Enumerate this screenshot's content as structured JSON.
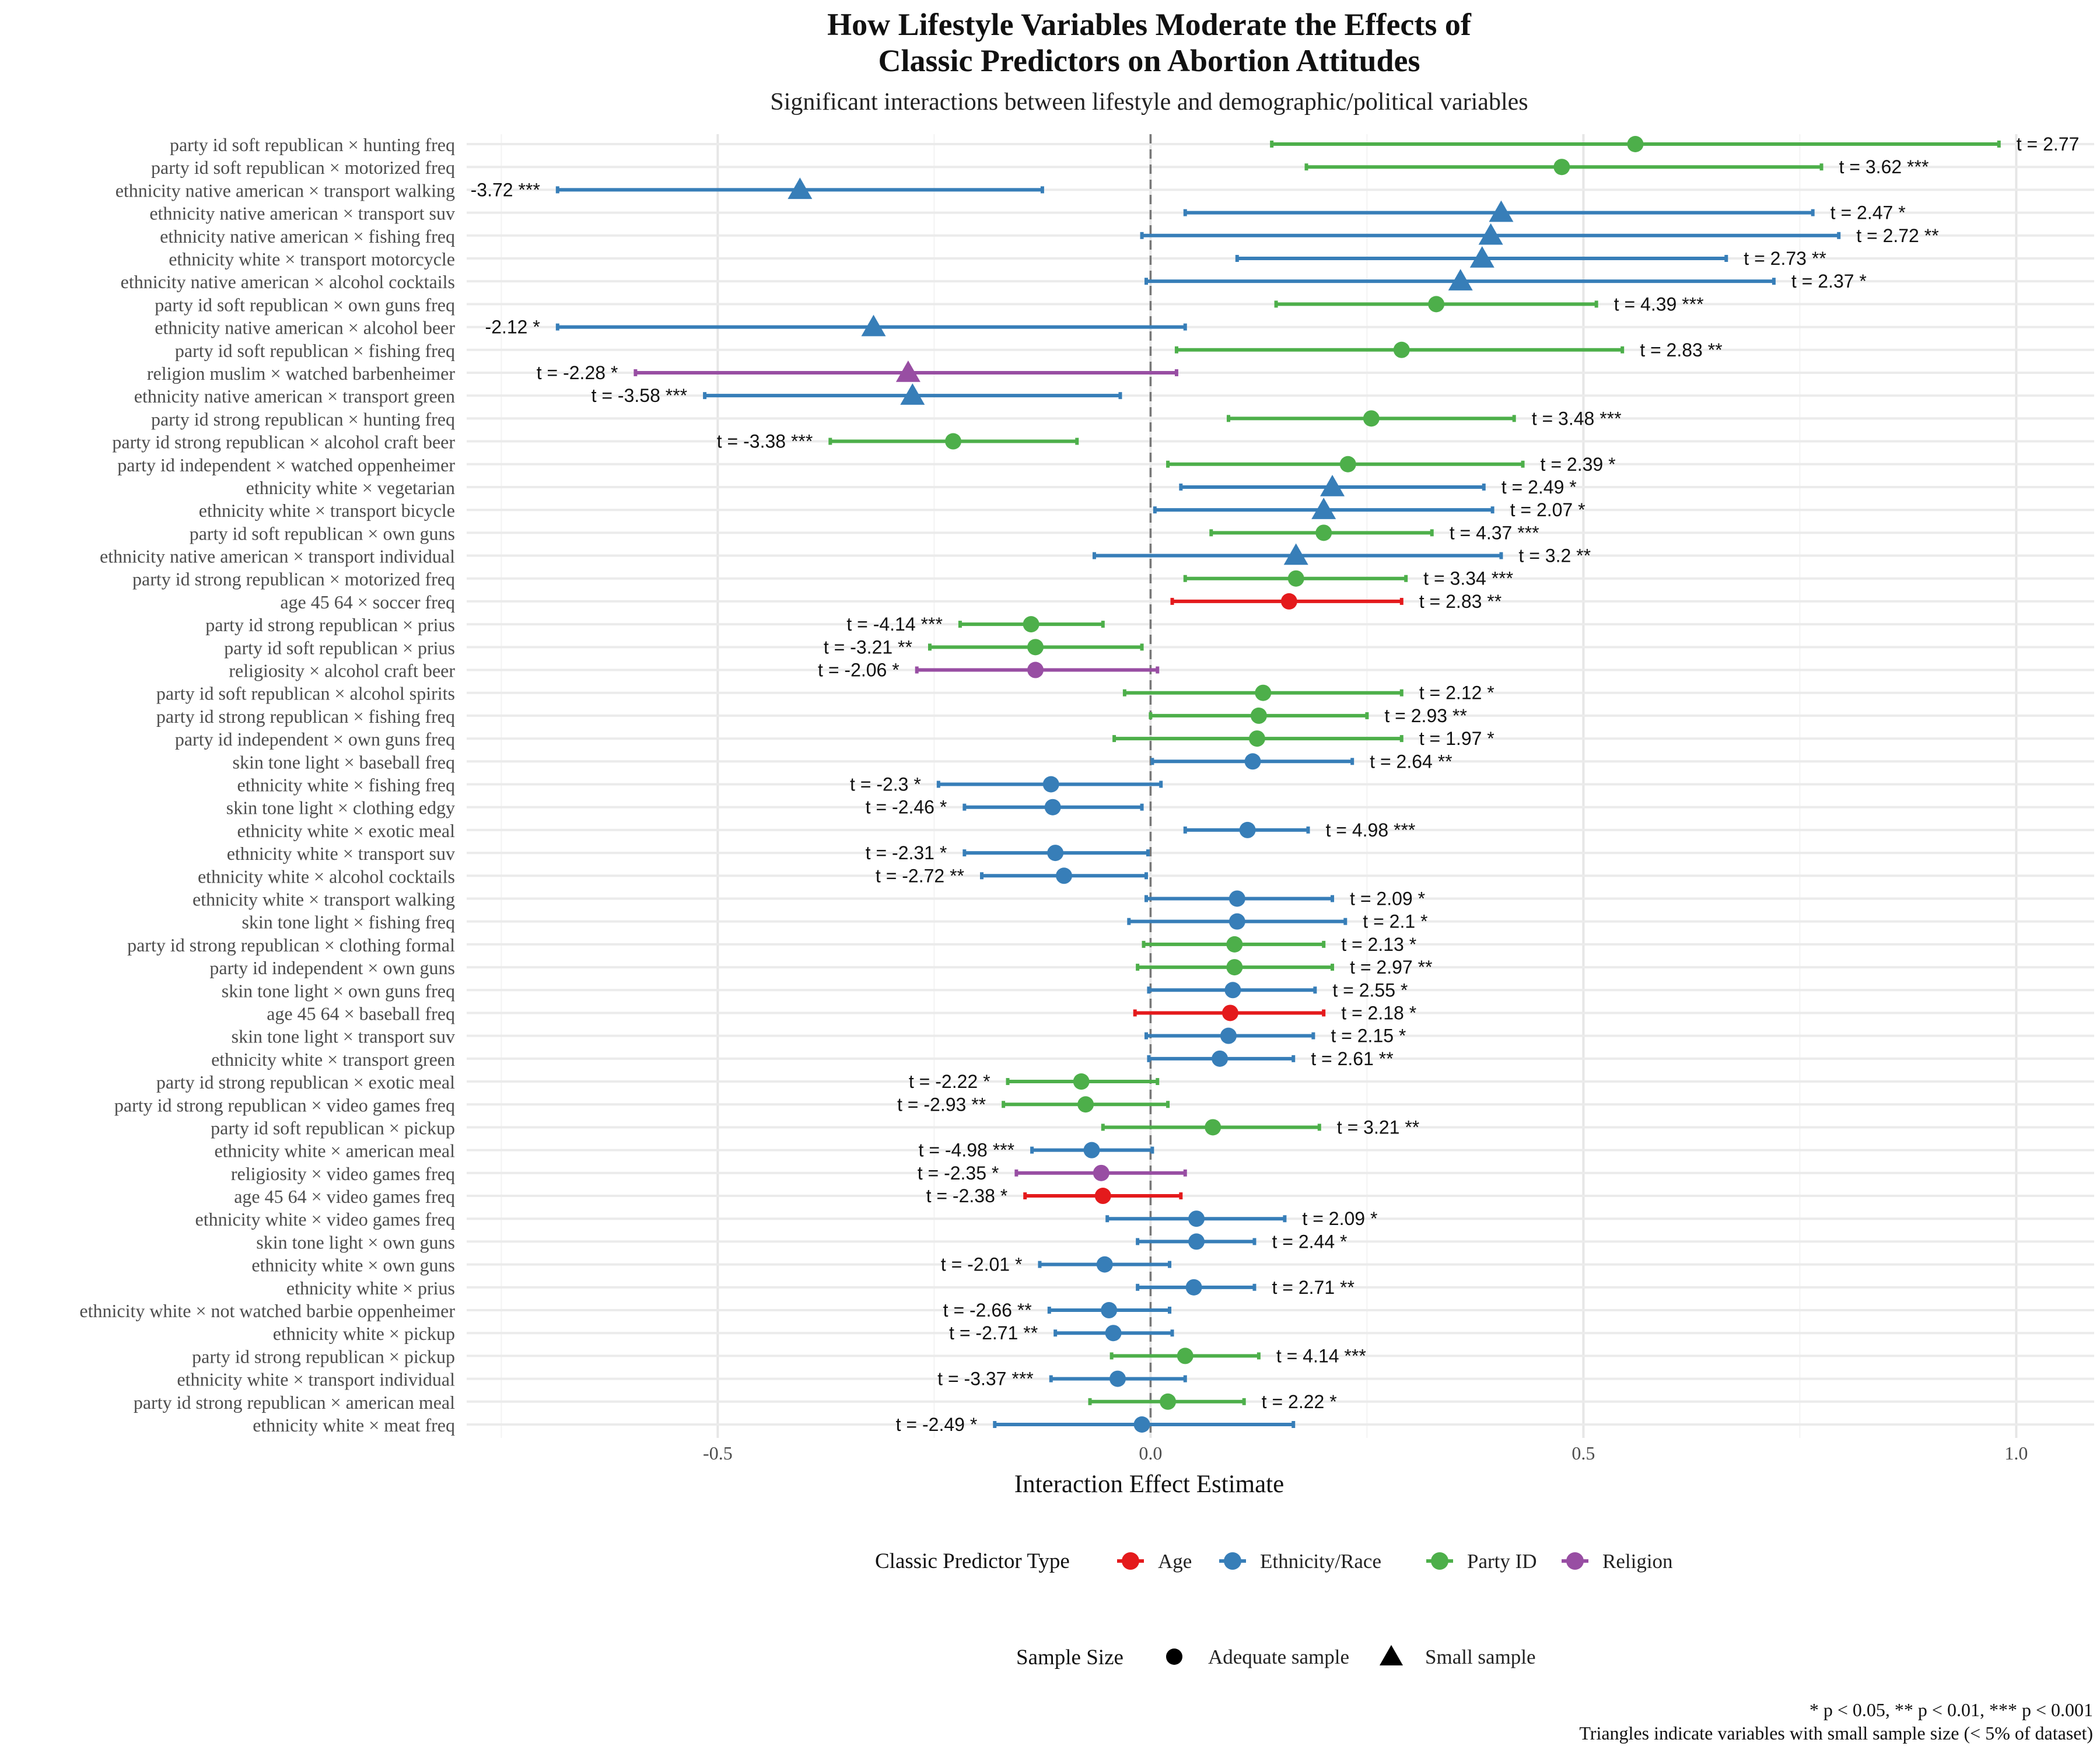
{
  "chart_data": {
    "type": "scatter",
    "title_lines": [
      "How Lifestyle Variables Moderate the Effects of",
      "Classic Predictors on Abortion Attitudes"
    ],
    "subtitle": "Significant interactions between lifestyle and demographic/political variables",
    "xlabel": "Interaction Effect Estimate",
    "ylabel": "",
    "xlim": [
      -0.79,
      1.09
    ],
    "x_ticks": [
      -0.5,
      0.0,
      0.5,
      1.0
    ],
    "x_tick_labels": [
      "-0.5",
      "0.0",
      "0.5",
      "1.0"
    ],
    "reference_line": 0,
    "grid": true,
    "colors": {
      "Age": "#E41A1C",
      "Ethnicity/Race": "#377EB8",
      "Party ID": "#4DAF4A",
      "Religion": "#984EA3"
    },
    "legend_color": {
      "title": "Classic Predictor Type",
      "items": [
        "Age",
        "Ethnicity/Race",
        "Party ID",
        "Religion"
      ],
      "position": "bottom"
    },
    "legend_shape": {
      "title": "Sample Size",
      "items": [
        {
          "label": "Adequate sample",
          "shape": "circle"
        },
        {
          "label": "Small sample",
          "shape": "triangle"
        }
      ],
      "position": "bottom"
    },
    "caption_lines": [
      "* p < 0.05, ** p < 0.01, *** p < 0.001",
      "Triangles indicate variables with small sample size (< 5% of dataset)"
    ],
    "rows": [
      {
        "label": "party id soft republican × hunting freq",
        "est": 0.56,
        "lo": 0.14,
        "hi": 0.98,
        "group": "Party ID",
        "small": false,
        "t": "t = 2.77"
      },
      {
        "label": "party id soft republican × motorized freq",
        "est": 0.475,
        "lo": 0.18,
        "hi": 0.775,
        "group": "Party ID",
        "small": false,
        "t": "t = 3.62 ***"
      },
      {
        "label": "ethnicity native american × transport walking",
        "est": -0.405,
        "lo": -0.685,
        "hi": -0.125,
        "group": "Ethnicity/Race",
        "small": true,
        "t": "-3.72 ***"
      },
      {
        "label": "ethnicity native american × transport suv",
        "est": 0.405,
        "lo": 0.04,
        "hi": 0.765,
        "group": "Ethnicity/Race",
        "small": true,
        "t": "t = 2.47 *"
      },
      {
        "label": "ethnicity native american × fishing freq",
        "est": 0.393,
        "lo": -0.01,
        "hi": 0.795,
        "group": "Ethnicity/Race",
        "small": true,
        "t": "t = 2.72 **"
      },
      {
        "label": "ethnicity white × transport motorcycle",
        "est": 0.383,
        "lo": 0.1,
        "hi": 0.665,
        "group": "Ethnicity/Race",
        "small": true,
        "t": "t = 2.73 **"
      },
      {
        "label": "ethnicity native american × alcohol cocktails",
        "est": 0.358,
        "lo": -0.005,
        "hi": 0.72,
        "group": "Ethnicity/Race",
        "small": true,
        "t": "t = 2.37 *"
      },
      {
        "label": "party id soft republican × own guns freq",
        "est": 0.33,
        "lo": 0.145,
        "hi": 0.515,
        "group": "Party ID",
        "small": false,
        "t": "t = 4.39 ***"
      },
      {
        "label": "ethnicity native american × alcohol beer",
        "est": -0.32,
        "lo": -0.685,
        "hi": 0.04,
        "group": "Ethnicity/Race",
        "small": true,
        "t": "-2.12 *"
      },
      {
        "label": "party id soft republican × fishing freq",
        "est": 0.29,
        "lo": 0.03,
        "hi": 0.545,
        "group": "Party ID",
        "small": false,
        "t": "t = 2.83 **"
      },
      {
        "label": "religion muslim × watched barbenheimer",
        "est": -0.28,
        "lo": -0.595,
        "hi": 0.03,
        "group": "Religion",
        "small": true,
        "t": "t = -2.28 *"
      },
      {
        "label": "ethnicity native american × transport green",
        "est": -0.275,
        "lo": -0.515,
        "hi": -0.035,
        "group": "Ethnicity/Race",
        "small": true,
        "t": "t = -3.58 ***"
      },
      {
        "label": "party id strong republican × hunting freq",
        "est": 0.255,
        "lo": 0.09,
        "hi": 0.42,
        "group": "Party ID",
        "small": false,
        "t": "t = 3.48 ***"
      },
      {
        "label": "party id strong republican × alcohol craft beer",
        "est": -0.228,
        "lo": -0.37,
        "hi": -0.085,
        "group": "Party ID",
        "small": false,
        "t": "t = -3.38 ***"
      },
      {
        "label": "party id independent × watched oppenheimer",
        "est": 0.228,
        "lo": 0.02,
        "hi": 0.43,
        "group": "Party ID",
        "small": false,
        "t": "t = 2.39 *"
      },
      {
        "label": "ethnicity white × vegetarian",
        "est": 0.21,
        "lo": 0.035,
        "hi": 0.385,
        "group": "Ethnicity/Race",
        "small": true,
        "t": "t = 2.49 *"
      },
      {
        "label": "ethnicity white × transport bicycle",
        "est": 0.2,
        "lo": 0.005,
        "hi": 0.395,
        "group": "Ethnicity/Race",
        "small": true,
        "t": "t = 2.07 *"
      },
      {
        "label": "party id soft republican × own guns",
        "est": 0.2,
        "lo": 0.07,
        "hi": 0.325,
        "group": "Party ID",
        "small": false,
        "t": "t = 4.37 ***"
      },
      {
        "label": "ethnicity native american × transport individual",
        "est": 0.168,
        "lo": -0.065,
        "hi": 0.405,
        "group": "Ethnicity/Race",
        "small": true,
        "t": "t = 3.2 **"
      },
      {
        "label": "party id strong republican × motorized freq",
        "est": 0.168,
        "lo": 0.04,
        "hi": 0.295,
        "group": "Party ID",
        "small": false,
        "t": "t = 3.34 ***"
      },
      {
        "label": "age 45 64 × soccer freq",
        "est": 0.16,
        "lo": 0.025,
        "hi": 0.29,
        "group": "Age",
        "small": false,
        "t": "t = 2.83 **"
      },
      {
        "label": "party id strong republican × prius",
        "est": -0.138,
        "lo": -0.22,
        "hi": -0.055,
        "group": "Party ID",
        "small": false,
        "t": "t = -4.14 ***"
      },
      {
        "label": "party id soft republican × prius",
        "est": -0.133,
        "lo": -0.255,
        "hi": -0.01,
        "group": "Party ID",
        "small": false,
        "t": "t = -3.21 **"
      },
      {
        "label": "religiosity × alcohol craft beer",
        "est": -0.133,
        "lo": -0.27,
        "hi": 0.008,
        "group": "Religion",
        "small": false,
        "t": "t = -2.06 *"
      },
      {
        "label": "party id soft republican × alcohol spirits",
        "est": 0.13,
        "lo": -0.03,
        "hi": 0.29,
        "group": "Party ID",
        "small": false,
        "t": "t = 2.12 *"
      },
      {
        "label": "party id strong republican × fishing freq",
        "est": 0.125,
        "lo": 0.0,
        "hi": 0.25,
        "group": "Party ID",
        "small": false,
        "t": "t = 2.93 **"
      },
      {
        "label": "party id independent × own guns freq",
        "est": 0.123,
        "lo": -0.042,
        "hi": 0.29,
        "group": "Party ID",
        "small": false,
        "t": "t = 1.97 *"
      },
      {
        "label": "skin tone light × baseball freq",
        "est": 0.118,
        "lo": 0.002,
        "hi": 0.233,
        "group": "Ethnicity/Race",
        "small": false,
        "t": "t = 2.64 **"
      },
      {
        "label": "ethnicity white × fishing freq",
        "est": -0.115,
        "lo": -0.245,
        "hi": 0.012,
        "group": "Ethnicity/Race",
        "small": false,
        "t": "t = -2.3 *"
      },
      {
        "label": "skin tone light × clothing edgy",
        "est": -0.113,
        "lo": -0.215,
        "hi": -0.01,
        "group": "Ethnicity/Race",
        "small": false,
        "t": "t = -2.46 *"
      },
      {
        "label": "ethnicity white × exotic meal",
        "est": 0.112,
        "lo": 0.04,
        "hi": 0.182,
        "group": "Ethnicity/Race",
        "small": false,
        "t": "t = 4.98 ***"
      },
      {
        "label": "ethnicity white × transport suv",
        "est": -0.11,
        "lo": -0.215,
        "hi": -0.003,
        "group": "Ethnicity/Race",
        "small": false,
        "t": "t = -2.31 *"
      },
      {
        "label": "ethnicity white × alcohol cocktails",
        "est": -0.1,
        "lo": -0.195,
        "hi": -0.005,
        "group": "Ethnicity/Race",
        "small": false,
        "t": "t = -2.72 **"
      },
      {
        "label": "ethnicity white × transport walking",
        "est": 0.1,
        "lo": -0.005,
        "hi": 0.21,
        "group": "Ethnicity/Race",
        "small": false,
        "t": "t = 2.09 *"
      },
      {
        "label": "skin tone light × fishing freq",
        "est": 0.1,
        "lo": -0.025,
        "hi": 0.225,
        "group": "Ethnicity/Race",
        "small": false,
        "t": "t = 2.1 *"
      },
      {
        "label": "party id strong republican × clothing formal",
        "est": 0.097,
        "lo": -0.008,
        "hi": 0.2,
        "group": "Party ID",
        "small": false,
        "t": "t = 2.13 *"
      },
      {
        "label": "party id independent × own guns",
        "est": 0.097,
        "lo": -0.015,
        "hi": 0.21,
        "group": "Party ID",
        "small": false,
        "t": "t = 2.97 **"
      },
      {
        "label": "skin tone light × own guns freq",
        "est": 0.095,
        "lo": -0.002,
        "hi": 0.19,
        "group": "Ethnicity/Race",
        "small": false,
        "t": "t = 2.55 *"
      },
      {
        "label": "age 45 64 × baseball freq",
        "est": 0.092,
        "lo": -0.018,
        "hi": 0.2,
        "group": "Age",
        "small": false,
        "t": "t = 2.18 *"
      },
      {
        "label": "skin tone light × transport suv",
        "est": 0.09,
        "lo": -0.005,
        "hi": 0.188,
        "group": "Ethnicity/Race",
        "small": false,
        "t": "t = 2.15 *"
      },
      {
        "label": "ethnicity white × transport green",
        "est": 0.08,
        "lo": -0.002,
        "hi": 0.165,
        "group": "Ethnicity/Race",
        "small": false,
        "t": "t = 2.61 **"
      },
      {
        "label": "party id strong republican × exotic meal",
        "est": -0.08,
        "lo": -0.165,
        "hi": 0.008,
        "group": "Party ID",
        "small": false,
        "t": "t = -2.22 *"
      },
      {
        "label": "party id strong republican × video games freq",
        "est": -0.075,
        "lo": -0.17,
        "hi": 0.02,
        "group": "Party ID",
        "small": false,
        "t": "t = -2.93 **"
      },
      {
        "label": "party id soft republican × pickup",
        "est": 0.072,
        "lo": -0.055,
        "hi": 0.195,
        "group": "Party ID",
        "small": false,
        "t": "t = 3.21 **"
      },
      {
        "label": "ethnicity white × american meal",
        "est": -0.068,
        "lo": -0.137,
        "hi": 0.002,
        "group": "Ethnicity/Race",
        "small": false,
        "t": "t = -4.98 ***"
      },
      {
        "label": "religiosity × video games freq",
        "est": -0.057,
        "lo": -0.155,
        "hi": 0.04,
        "group": "Religion",
        "small": false,
        "t": "t = -2.35 *"
      },
      {
        "label": "age 45 64 × video games freq",
        "est": -0.055,
        "lo": -0.145,
        "hi": 0.035,
        "group": "Age",
        "small": false,
        "t": "t = -2.38 *"
      },
      {
        "label": "ethnicity white × video games freq",
        "est": 0.053,
        "lo": -0.05,
        "hi": 0.155,
        "group": "Ethnicity/Race",
        "small": false,
        "t": "t = 2.09 *"
      },
      {
        "label": "skin tone light × own guns",
        "est": 0.053,
        "lo": -0.015,
        "hi": 0.12,
        "group": "Ethnicity/Race",
        "small": false,
        "t": "t = 2.44 *"
      },
      {
        "label": "ethnicity white × own guns",
        "est": -0.053,
        "lo": -0.128,
        "hi": 0.022,
        "group": "Ethnicity/Race",
        "small": false,
        "t": "t = -2.01 *"
      },
      {
        "label": "ethnicity white × prius",
        "est": 0.05,
        "lo": -0.015,
        "hi": 0.12,
        "group": "Ethnicity/Race",
        "small": false,
        "t": "t = 2.71 **"
      },
      {
        "label": "ethnicity white × not watched barbie oppenheimer",
        "est": -0.048,
        "lo": -0.117,
        "hi": 0.022,
        "group": "Ethnicity/Race",
        "small": false,
        "t": "t = -2.66 **"
      },
      {
        "label": "ethnicity white × pickup",
        "est": -0.043,
        "lo": -0.11,
        "hi": 0.025,
        "group": "Ethnicity/Race",
        "small": false,
        "t": "t = -2.71 **"
      },
      {
        "label": "party id strong republican × pickup",
        "est": 0.04,
        "lo": -0.045,
        "hi": 0.125,
        "group": "Party ID",
        "small": false,
        "t": "t = 4.14 ***"
      },
      {
        "label": "ethnicity white × transport individual",
        "est": -0.038,
        "lo": -0.115,
        "hi": 0.04,
        "group": "Ethnicity/Race",
        "small": false,
        "t": "t = -3.37 ***"
      },
      {
        "label": "party id strong republican × american meal",
        "est": 0.02,
        "lo": -0.07,
        "hi": 0.108,
        "group": "Party ID",
        "small": false,
        "t": "t = 2.22 *"
      },
      {
        "label": "ethnicity white × meat freq",
        "est": -0.01,
        "lo": -0.18,
        "hi": 0.165,
        "group": "Ethnicity/Race",
        "small": false,
        "t": "t = -2.49 *"
      }
    ]
  }
}
